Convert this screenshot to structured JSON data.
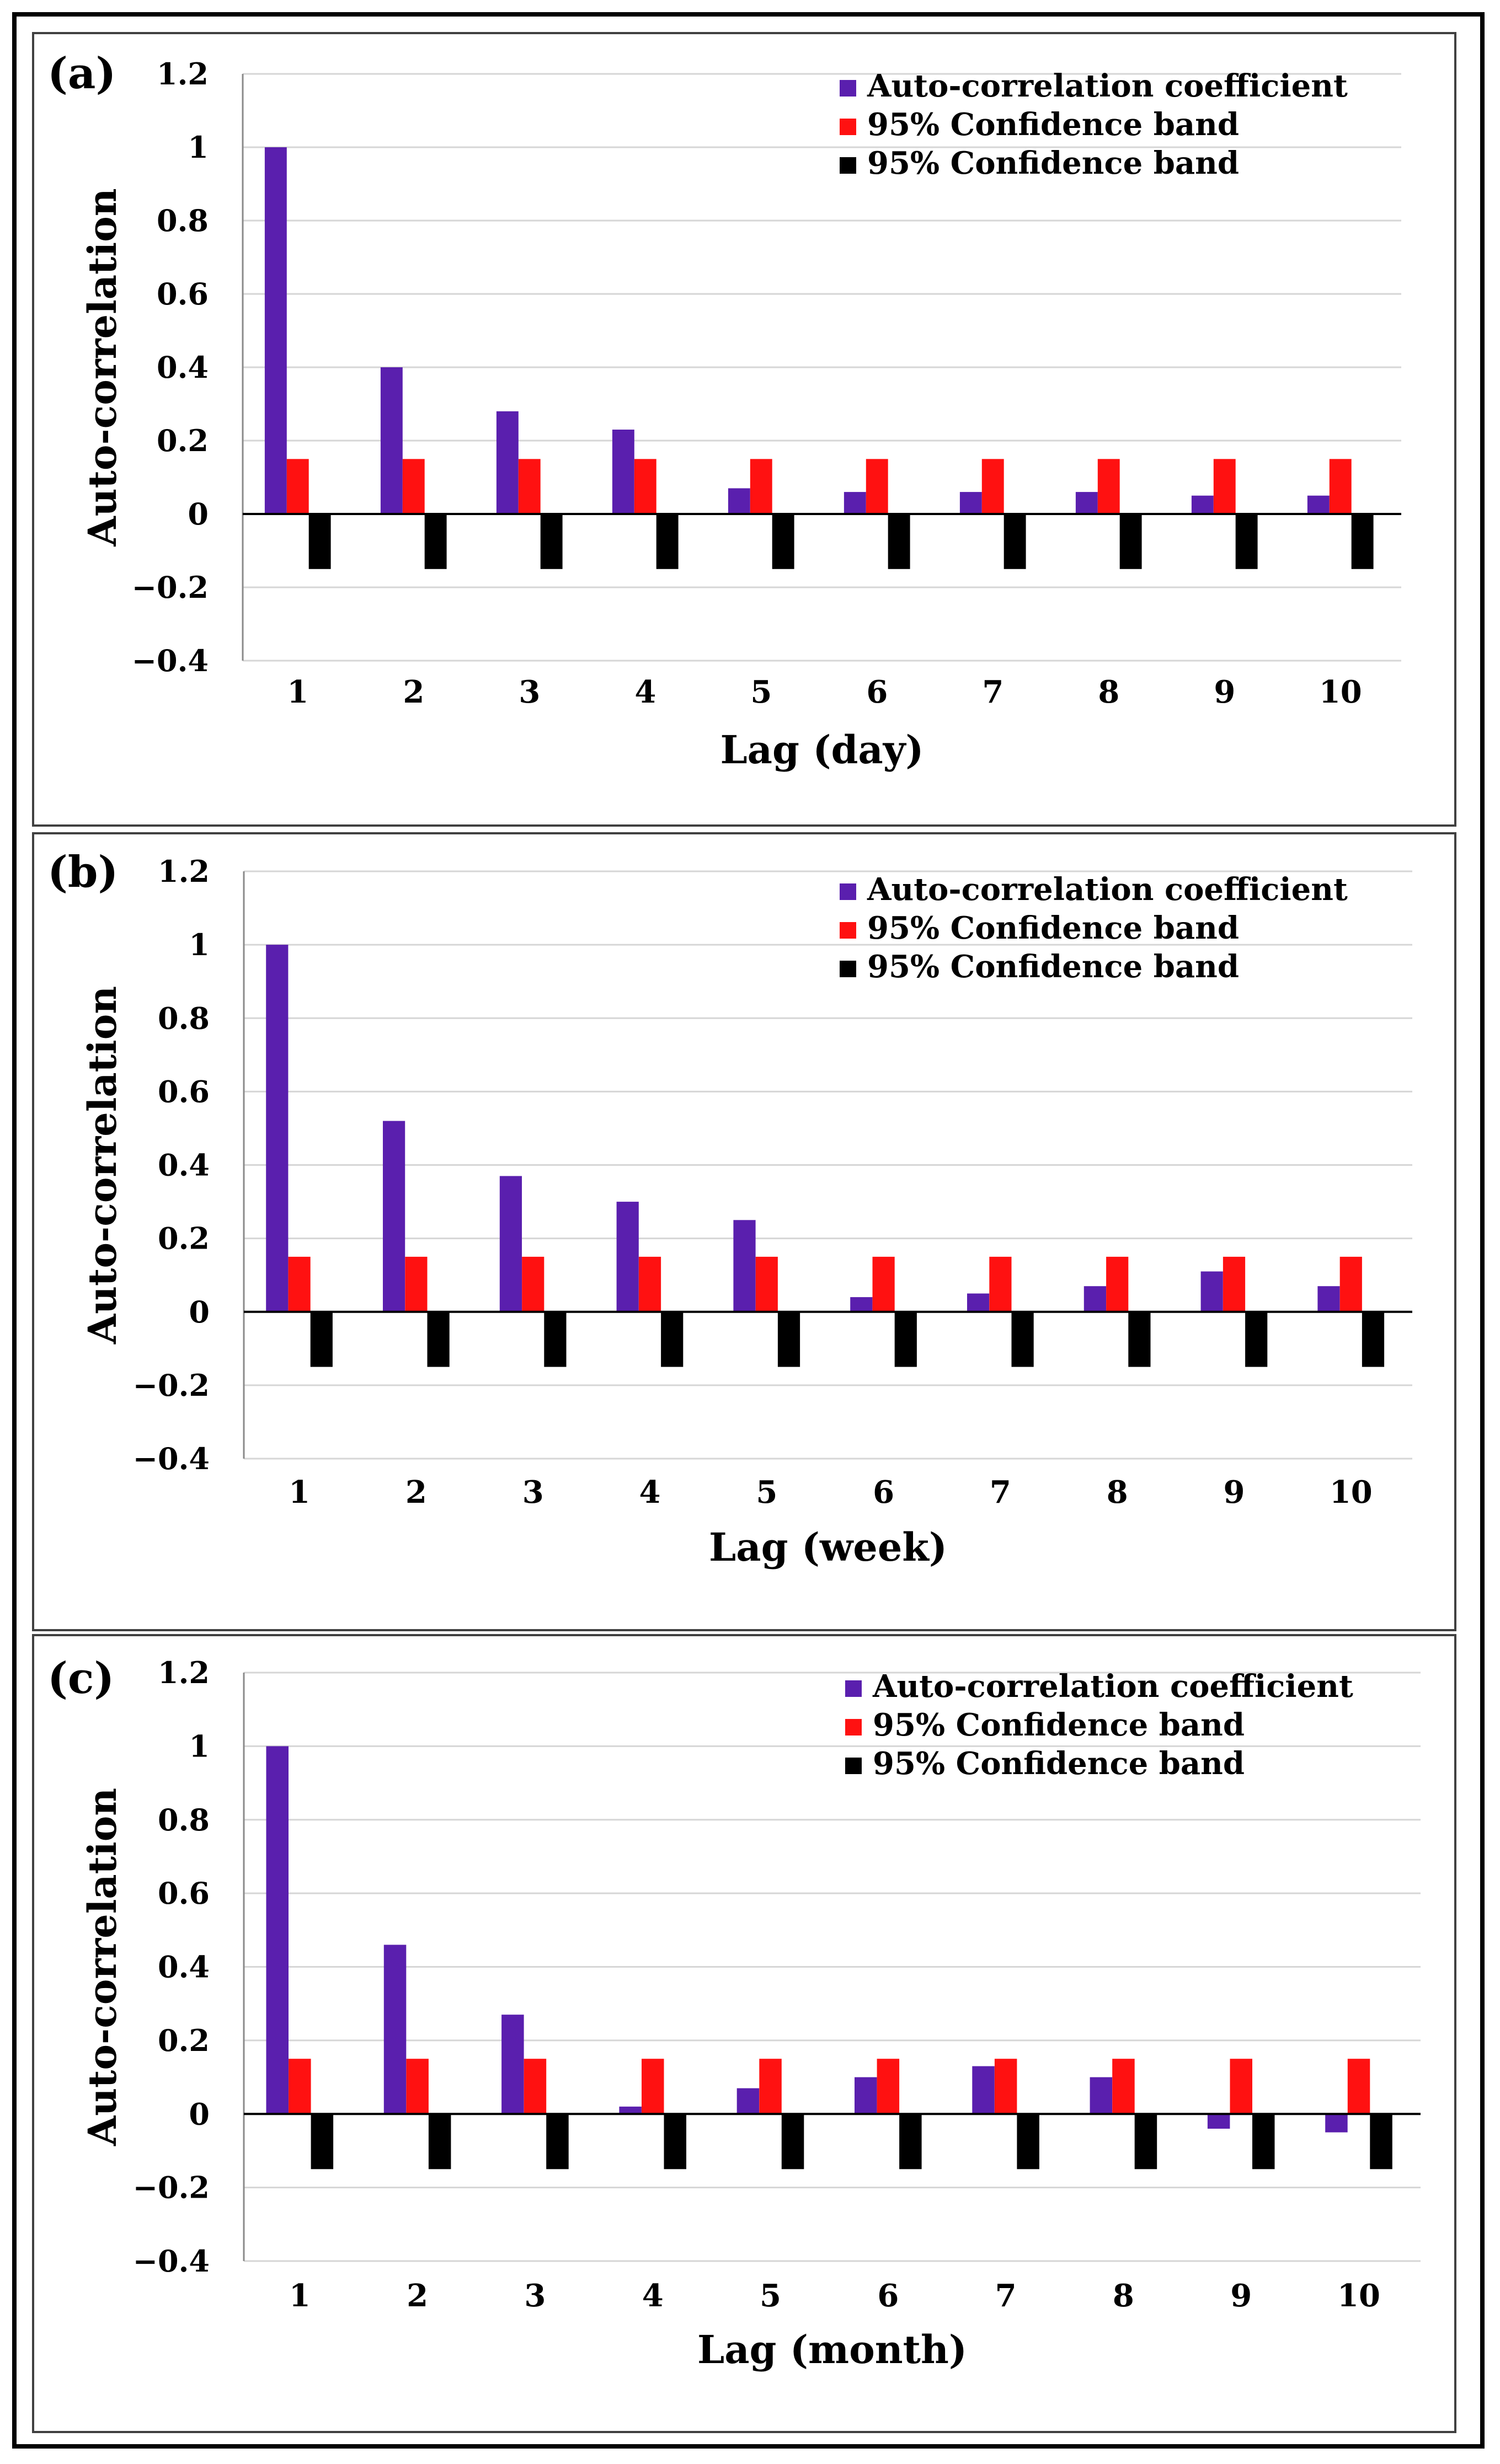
{
  "colors": {
    "coefficient": "#5a1fae",
    "upper_band": "#ff1111",
    "lower_band": "#000000",
    "gridline": "#d6d6d6",
    "panel_border": "#404040"
  },
  "chart_data": [
    {
      "panel_label": "(a)",
      "type": "bar",
      "ylabel": "Auto-correlation",
      "xlabel": "Lag (day)",
      "categories": [
        "1",
        "2",
        "3",
        "4",
        "5",
        "6",
        "7",
        "8",
        "9",
        "10"
      ],
      "ylim": [
        -0.4,
        1.2
      ],
      "yticks": [
        -0.4,
        -0.2,
        0,
        0.2,
        0.4,
        0.6,
        0.8,
        1,
        1.2
      ],
      "ytick_labels": [
        "−0.4",
        "−0.2",
        "0",
        "0.2",
        "0.4",
        "0.6",
        "0.8",
        "1",
        "1.2"
      ],
      "grid": true,
      "legend_position": "top-right",
      "series": [
        {
          "name": "Auto-correlation coefficient",
          "values": [
            1.0,
            0.4,
            0.28,
            0.23,
            0.07,
            0.06,
            0.06,
            0.06,
            0.05,
            0.05
          ]
        },
        {
          "name": "95% Confidence band",
          "values": [
            0.15,
            0.15,
            0.15,
            0.15,
            0.15,
            0.15,
            0.15,
            0.15,
            0.15,
            0.15
          ]
        },
        {
          "name": "95% Confidence band",
          "values": [
            -0.15,
            -0.15,
            -0.15,
            -0.15,
            -0.15,
            -0.15,
            -0.15,
            -0.15,
            -0.15,
            -0.15
          ]
        }
      ]
    },
    {
      "panel_label": "(b)",
      "type": "bar",
      "ylabel": "Auto-correlation",
      "xlabel": "Lag (week)",
      "categories": [
        "1",
        "2",
        "3",
        "4",
        "5",
        "6",
        "7",
        "8",
        "9",
        "10"
      ],
      "ylim": [
        -0.4,
        1.2
      ],
      "yticks": [
        -0.4,
        -0.2,
        0,
        0.2,
        0.4,
        0.6,
        0.8,
        1,
        1.2
      ],
      "ytick_labels": [
        "−0.4",
        "−0.2",
        "0",
        "0.2",
        "0.4",
        "0.6",
        "0.8",
        "1",
        "1.2"
      ],
      "grid": true,
      "legend_position": "top-right",
      "series": [
        {
          "name": "Auto-correlation coefficient",
          "values": [
            1.0,
            0.52,
            0.37,
            0.3,
            0.25,
            0.04,
            0.05,
            0.07,
            0.11,
            0.07
          ]
        },
        {
          "name": "95% Confidence band",
          "values": [
            0.15,
            0.15,
            0.15,
            0.15,
            0.15,
            0.15,
            0.15,
            0.15,
            0.15,
            0.15
          ]
        },
        {
          "name": "95% Confidence band",
          "values": [
            -0.15,
            -0.15,
            -0.15,
            -0.15,
            -0.15,
            -0.15,
            -0.15,
            -0.15,
            -0.15,
            -0.15
          ]
        }
      ]
    },
    {
      "panel_label": "(c)",
      "type": "bar",
      "ylabel": "Auto-correlation",
      "xlabel": "Lag (month)",
      "categories": [
        "1",
        "2",
        "3",
        "4",
        "5",
        "6",
        "7",
        "8",
        "9",
        "10"
      ],
      "ylim": [
        -0.4,
        1.2
      ],
      "yticks": [
        -0.4,
        -0.2,
        0,
        0.2,
        0.4,
        0.6,
        0.8,
        1,
        1.2
      ],
      "ytick_labels": [
        "−0.4",
        "−0.2",
        "0",
        "0.2",
        "0.4",
        "0.6",
        "0.8",
        "1",
        "1.2"
      ],
      "grid": true,
      "legend_position": "top-right",
      "series": [
        {
          "name": "Auto-correlation coefficient",
          "values": [
            1.0,
            0.46,
            0.27,
            0.02,
            0.07,
            0.1,
            0.13,
            0.1,
            -0.04,
            -0.05
          ]
        },
        {
          "name": "95% Confidence band",
          "values": [
            0.15,
            0.15,
            0.15,
            0.15,
            0.15,
            0.15,
            0.15,
            0.15,
            0.15,
            0.15
          ]
        },
        {
          "name": "95% Confidence band",
          "values": [
            -0.15,
            -0.15,
            -0.15,
            -0.15,
            -0.15,
            -0.15,
            -0.15,
            -0.15,
            -0.15,
            -0.15
          ]
        }
      ]
    }
  ]
}
